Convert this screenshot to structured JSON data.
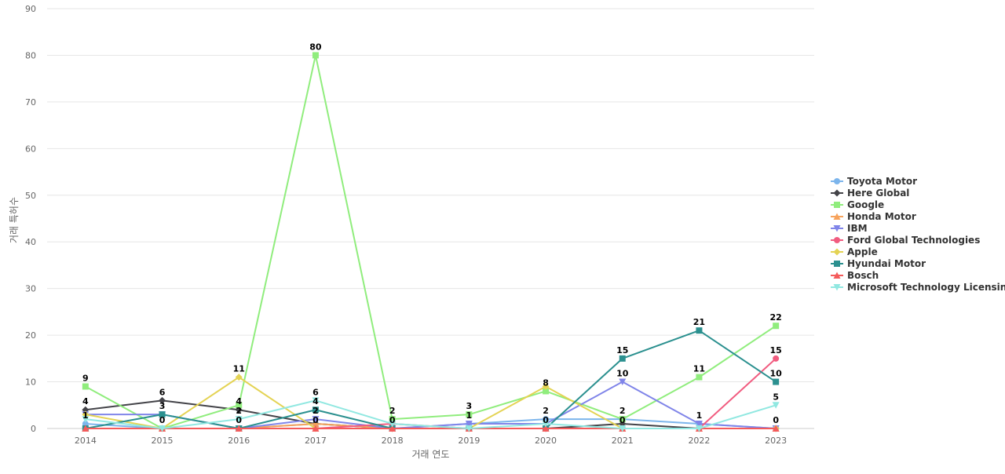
{
  "chart_data": {
    "type": "line",
    "title": "",
    "xlabel": "거래 연도",
    "ylabel": "거래 특허수",
    "ylim": [
      0,
      90
    ],
    "yticks": [
      0,
      10,
      20,
      30,
      40,
      50,
      60,
      70,
      80,
      90
    ],
    "grid": true,
    "legend_position": "right",
    "categories": [
      "2014",
      "2015",
      "2016",
      "2017",
      "2018",
      "2019",
      "2020",
      "2021",
      "2022",
      "2023"
    ],
    "series": [
      {
        "name": "Toyota Motor",
        "color": "#7cb5ec",
        "marker": "circle",
        "values": [
          1,
          0,
          0,
          1,
          0,
          1,
          2,
          2,
          1,
          0
        ]
      },
      {
        "name": "Here Global",
        "color": "#434348",
        "marker": "diamond",
        "values": [
          4,
          6,
          4,
          1,
          0,
          0,
          0,
          1,
          0,
          0
        ]
      },
      {
        "name": "Google",
        "color": "#90ed7d",
        "marker": "square",
        "values": [
          9,
          0,
          5,
          80,
          2,
          3,
          8,
          2,
          11,
          22
        ]
      },
      {
        "name": "Honda Motor",
        "color": "#f7a35c",
        "marker": "triangle",
        "values": [
          0,
          0,
          0,
          1,
          0,
          0,
          0,
          0,
          0,
          0
        ]
      },
      {
        "name": "IBM",
        "color": "#8085e9",
        "marker": "triangle-down",
        "values": [
          3,
          3,
          0,
          2,
          0,
          1,
          1,
          10,
          1,
          0
        ]
      },
      {
        "name": "Ford Global Technologies",
        "color": "#f15c80",
        "marker": "circle",
        "values": [
          0,
          0,
          0,
          0,
          1,
          0,
          0,
          0,
          0,
          15
        ]
      },
      {
        "name": "Apple",
        "color": "#e4d354",
        "marker": "diamond",
        "values": [
          3,
          0,
          11,
          0,
          0,
          0,
          9,
          0,
          0,
          0
        ]
      },
      {
        "name": "Hyundai Motor",
        "color": "#2b908f",
        "marker": "square",
        "values": [
          0,
          3,
          0,
          4,
          0,
          0,
          0,
          15,
          21,
          10
        ]
      },
      {
        "name": "Bosch",
        "color": "#f45b5b",
        "marker": "triangle",
        "values": [
          0,
          0,
          0,
          0,
          0,
          0,
          0,
          0,
          0,
          0
        ]
      },
      {
        "name": "Microsoft Technology Licensing",
        "color": "#91e8e1",
        "marker": "triangle-down",
        "values": [
          2,
          0,
          2,
          6,
          1,
          0,
          1,
          0,
          0,
          5
        ]
      }
    ],
    "data_labels": [
      {
        "category": "2014",
        "text": "9",
        "value": 9
      },
      {
        "category": "2014",
        "text": "4",
        "value": 4
      },
      {
        "category": "2014",
        "text": "1",
        "value": 1
      },
      {
        "category": "2015",
        "text": "6",
        "value": 6
      },
      {
        "category": "2015",
        "text": "3",
        "value": 3
      },
      {
        "category": "2015",
        "text": "0",
        "value": 0
      },
      {
        "category": "2016",
        "text": "11",
        "value": 11
      },
      {
        "category": "2016",
        "text": "4",
        "value": 4
      },
      {
        "category": "2016",
        "text": "2",
        "value": 2
      },
      {
        "category": "2016",
        "text": "0",
        "value": 0
      },
      {
        "category": "2017",
        "text": "80",
        "value": 80
      },
      {
        "category": "2017",
        "text": "6",
        "value": 6
      },
      {
        "category": "2017",
        "text": "4",
        "value": 4
      },
      {
        "category": "2017",
        "text": "2",
        "value": 2
      },
      {
        "category": "2017",
        "text": "0",
        "value": 0
      },
      {
        "category": "2018",
        "text": "2",
        "value": 2
      },
      {
        "category": "2018",
        "text": "0",
        "value": 0
      },
      {
        "category": "2019",
        "text": "3",
        "value": 3
      },
      {
        "category": "2019",
        "text": "1",
        "value": 1
      },
      {
        "category": "2020",
        "text": "8",
        "value": 8
      },
      {
        "category": "2020",
        "text": "2",
        "value": 2
      },
      {
        "category": "2020",
        "text": "0",
        "value": 0
      },
      {
        "category": "2021",
        "text": "15",
        "value": 15
      },
      {
        "category": "2021",
        "text": "10",
        "value": 10
      },
      {
        "category": "2021",
        "text": "2",
        "value": 2
      },
      {
        "category": "2021",
        "text": "0",
        "value": 0
      },
      {
        "category": "2022",
        "text": "21",
        "value": 21
      },
      {
        "category": "2022",
        "text": "11",
        "value": 11
      },
      {
        "category": "2022",
        "text": "1",
        "value": 1
      },
      {
        "category": "2023",
        "text": "22",
        "value": 22
      },
      {
        "category": "2023",
        "text": "15",
        "value": 15
      },
      {
        "category": "2023",
        "text": "10",
        "value": 10
      },
      {
        "category": "2023",
        "text": "5",
        "value": 5
      },
      {
        "category": "2023",
        "text": "0",
        "value": 0
      }
    ]
  }
}
